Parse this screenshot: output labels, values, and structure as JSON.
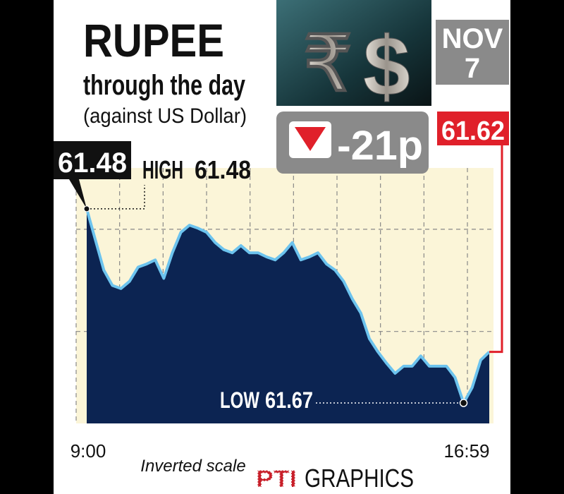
{
  "chart_data": {
    "type": "line",
    "title": "RUPEE",
    "subtitle": "through the day",
    "note": "(against US Dollar)",
    "date_month": "NOV",
    "date_day": "7",
    "change": "-21p",
    "high_label": "HIGH",
    "low_label": "LOW",
    "scale_note": "Inverted scale",
    "credit_logo": "PTI",
    "credit": "GRAPHICS",
    "categories": [
      "9:00",
      null,
      null,
      null,
      null,
      null,
      null,
      null,
      null,
      null,
      null,
      null,
      null,
      null,
      null,
      null,
      null,
      null,
      null,
      null,
      null,
      null,
      null,
      null,
      null,
      null,
      null,
      null,
      null,
      null,
      null,
      null,
      null,
      null,
      null,
      null,
      null,
      null,
      null,
      null,
      null,
      null,
      null,
      null,
      null,
      null,
      null,
      "16:59"
    ],
    "values": [
      61.48,
      61.51,
      61.54,
      61.555,
      61.558,
      61.551,
      61.537,
      61.534,
      61.53,
      61.548,
      61.523,
      61.503,
      61.496,
      61.499,
      61.503,
      61.513,
      61.52,
      61.523,
      61.516,
      61.523,
      61.523,
      61.527,
      61.53,
      61.523,
      61.513,
      61.53,
      61.527,
      61.523,
      61.534,
      61.54,
      61.551,
      61.568,
      61.582,
      61.607,
      61.62,
      61.631,
      61.641,
      61.634,
      61.634,
      61.624,
      61.634,
      61.634,
      61.634,
      61.645,
      61.67,
      61.655,
      61.628,
      61.62
    ],
    "ylim": [
      61.44,
      61.69
    ],
    "inverted": true,
    "yticks": [
      61.5,
      61.6
    ],
    "grid": true,
    "line_color": "#6cc3ee",
    "area_color": "#0c2452",
    "background": "#fbf5d8"
  }
}
